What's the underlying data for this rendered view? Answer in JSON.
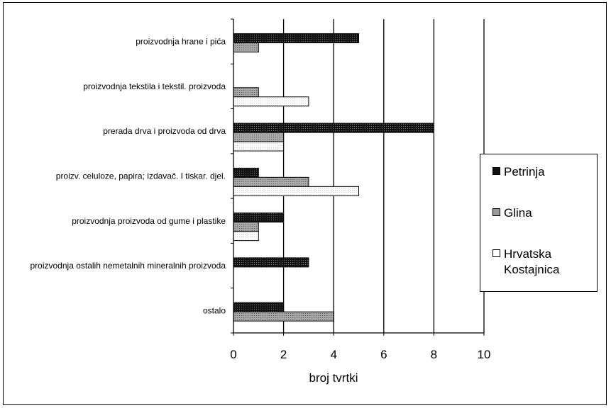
{
  "chart_data": {
    "type": "bar",
    "orientation": "horizontal",
    "categories": [
      "proizvodnja hrane i pića",
      "proizvodnja tekstila i tekstil. proizvoda",
      "prerada drva i proizvoda od drva",
      "proizv. celuloze, papira; izdavač. I tiskar. djel.",
      "proizvodnja proizvoda od gume i plastike",
      "proizvodnja ostalih nemetalnih mineralnih proizvoda",
      "ostalo"
    ],
    "series": [
      {
        "name": "Petrinja",
        "values": [
          5,
          0,
          8,
          1,
          2,
          3,
          2
        ],
        "color": "#111111",
        "pattern": "dark-dotted"
      },
      {
        "name": "Glina",
        "values": [
          1,
          1,
          2,
          3,
          1,
          0,
          4
        ],
        "color": "#9a9a9a",
        "pattern": "gray-dotted"
      },
      {
        "name": "Hrvatska Kostajnica",
        "values": [
          0,
          3,
          2,
          5,
          1,
          0,
          0
        ],
        "color": "#ffffff",
        "pattern": "white-dotted"
      }
    ],
    "xlabel": "broj tvrtki",
    "ylabel": "",
    "xlim": [
      0,
      10
    ],
    "xticks": [
      0,
      2,
      4,
      6,
      8,
      10
    ],
    "grid": "vertical",
    "legend_position": "right"
  },
  "legend": {
    "items": [
      {
        "label": "Petrinja",
        "color": "#111111"
      },
      {
        "label": "Glina",
        "color": "#9a9a9a"
      },
      {
        "label": "Hrvatska Kostajnica",
        "label_lines": [
          "Hrvatska",
          "Kostajnica"
        ],
        "color": "#ffffff"
      }
    ]
  }
}
